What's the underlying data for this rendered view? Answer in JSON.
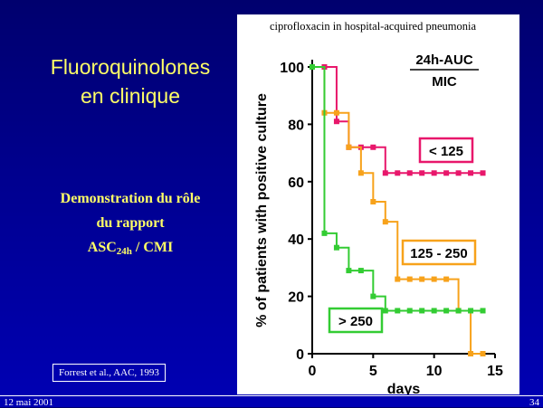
{
  "slide": {
    "title_line1": "Fluoroquinolones",
    "title_line2": "en clinique",
    "subtitle_line1": "Demonstration du rôle",
    "subtitle_line2": "du rapport",
    "subtitle_ratio_prefix": "ASC",
    "subtitle_ratio_sub": "24h",
    "subtitle_ratio_suffix": " / CMI",
    "reference": "Forrest et al., AAC, 1993",
    "footer_date": "12 mai 2001",
    "footer_page": "34"
  },
  "chart_data": {
    "type": "line",
    "title": "ciprofloxacin in hospital-acquired pneumonia",
    "xlabel": "days",
    "ylabel": "% of patients with positive culture",
    "xlim": [
      0,
      15
    ],
    "ylim": [
      0,
      100
    ],
    "x_ticks": [
      0,
      5,
      10,
      15
    ],
    "y_ticks": [
      0,
      20,
      40,
      60,
      80,
      100
    ],
    "x_tick_labels": [
      "0",
      "5",
      "10",
      "15"
    ],
    "y_tick_labels": [
      "0",
      "20",
      "40",
      "60",
      "80",
      "100"
    ],
    "legend_title_line1": "24h-AUC",
    "legend_title_line2": "MIC",
    "grid": false,
    "series": [
      {
        "name": "< 125",
        "color": "#e8176b",
        "x": [
          0,
          1,
          2,
          3,
          4,
          5,
          6,
          7,
          8,
          9,
          10,
          11,
          12,
          13,
          14
        ],
        "y": [
          100,
          100,
          81,
          72,
          72,
          72,
          63,
          63,
          63,
          63,
          63,
          63,
          63,
          63,
          63
        ]
      },
      {
        "name": "125 - 250",
        "color": "#f7a21b",
        "x": [
          0,
          1,
          2,
          3,
          4,
          5,
          6,
          7,
          8,
          9,
          10,
          11,
          12,
          13,
          14
        ],
        "y": [
          100,
          84,
          84,
          72,
          63,
          53,
          46,
          26,
          26,
          26,
          26,
          26,
          15,
          0,
          0
        ]
      },
      {
        "name": "> 250",
        "color": "#33cc33",
        "x": [
          0,
          1,
          2,
          3,
          4,
          5,
          6,
          7,
          8,
          9,
          10,
          11,
          12,
          13,
          14
        ],
        "y": [
          100,
          42,
          37,
          29,
          29,
          20,
          15,
          15,
          15,
          15,
          15,
          15,
          15,
          15,
          15
        ]
      }
    ]
  }
}
